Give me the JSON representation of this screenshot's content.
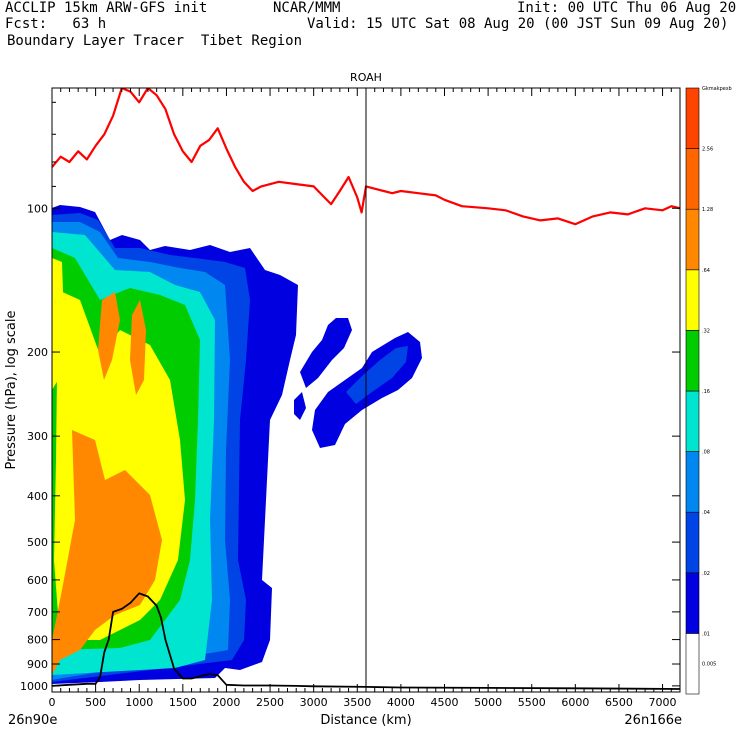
{
  "header": {
    "title_line": "ACCLIP 15km ARW-GFS init",
    "org": "NCAR/MMM",
    "init_line": "Init: 00 UTC Thu 06 Aug 20",
    "fcst_line": "Fcst:   63 h",
    "valid_line": "Valid: 15 UTC Sat 08 Aug 20 (00 JST Sun 09 Aug 20)",
    "subtitle": "Boundary Layer Tracer  Tibet Region"
  },
  "chart_data": {
    "type": "heatmap",
    "title": "ROAH",
    "xlabel": "Distance (km)",
    "ylabel": "Pressure (hPa), log scale",
    "x_left_label": "26n90e",
    "x_right_label": "26n166e",
    "xlim": [
      0,
      7200
    ],
    "ylim": [
      1030,
      56
    ],
    "y_scale": "log",
    "x_ticks": [
      0,
      500,
      1000,
      1500,
      2000,
      2500,
      3000,
      3500,
      4000,
      4500,
      5000,
      5500,
      6000,
      6500,
      7000
    ],
    "y_ticks": [
      100,
      200,
      300,
      400,
      500,
      600,
      700,
      800,
      900,
      1000
    ],
    "marker_x": 3600,
    "colorbar": {
      "levels": [
        "0.005",
        ".01",
        ".02",
        ".04",
        ".08",
        ".16",
        ".32",
        ".64",
        "1.28",
        "2.56",
        "Gkmakpesb"
      ],
      "colors": [
        "#ffffff",
        "#0000e0",
        "#0044e6",
        "#0088f0",
        "#00e5d0",
        "#00cc00",
        "#ffff00",
        "#ff8800",
        "#ff6600",
        "#ff4400"
      ]
    },
    "series": [
      {
        "name": "tropopause",
        "color": "#ff0000",
        "x": [
          0,
          100,
          200,
          300,
          400,
          500,
          600,
          700,
          800,
          900,
          1000,
          1100,
          1200,
          1300,
          1400,
          1500,
          1600,
          1700,
          1800,
          1900,
          2000,
          2100,
          2200,
          2300,
          2400,
          2600,
          2800,
          3000,
          3100,
          3200,
          3300,
          3400,
          3500,
          3550,
          3600,
          3700,
          3900,
          4000,
          4200,
          4400,
          4500,
          4700,
          5000,
          5200,
          5400,
          5600,
          5800,
          6000,
          6200,
          6400,
          6600,
          6800,
          7000,
          7100,
          7200
        ],
        "y": [
          82,
          78,
          80,
          76,
          79,
          74,
          70,
          64,
          56,
          57,
          60,
          56,
          58,
          62,
          70,
          76,
          80,
          74,
          72,
          68,
          75,
          82,
          88,
          92,
          90,
          88,
          89,
          90,
          94,
          98,
          92,
          86,
          95,
          102,
          90,
          91,
          93,
          92,
          93,
          94,
          96,
          99,
          100,
          101,
          104,
          106,
          105,
          108,
          104,
          102,
          103,
          100,
          101,
          99,
          100
        ]
      },
      {
        "name": "terrain",
        "color": "#000000",
        "x": [
          0,
          200,
          400,
          500,
          550,
          600,
          650,
          700,
          800,
          900,
          1000,
          1100,
          1200,
          1250,
          1300,
          1400,
          1500,
          1600,
          1700,
          1800,
          1900,
          2000,
          2200,
          2500,
          2800,
          3000,
          3600,
          4000,
          5000,
          6000,
          7200
        ],
        "y": [
          1000,
          995,
          990,
          990,
          960,
          850,
          800,
          700,
          690,
          670,
          640,
          650,
          680,
          720,
          800,
          920,
          965,
          965,
          955,
          945,
          950,
          995,
          998,
          998,
          1000,
          1002,
          1005,
          1008,
          1010,
          1012,
          1015
        ]
      }
    ]
  }
}
